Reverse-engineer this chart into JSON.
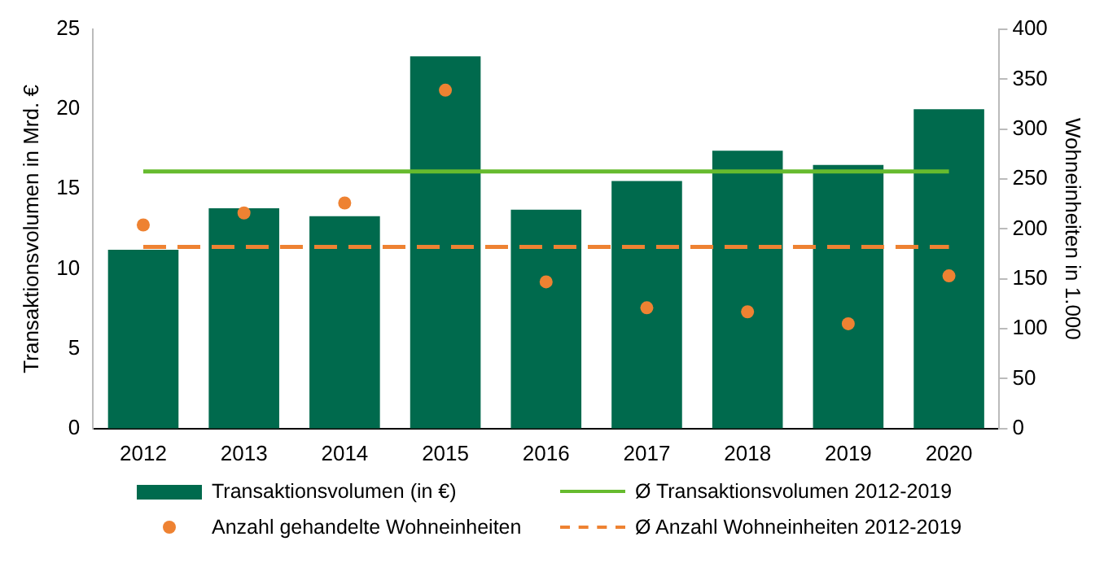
{
  "chart_data": {
    "type": "bar",
    "categories": [
      "2012",
      "2013",
      "2014",
      "2015",
      "2016",
      "2017",
      "2018",
      "2019",
      "2020"
    ],
    "ylabel": "Transaktionsvolumen in Mrd. €",
    "y2label": "Wohneinheiten in 1.000",
    "ylim": [
      0,
      25
    ],
    "yticks": [
      0,
      5,
      10,
      15,
      20,
      25
    ],
    "y2lim": [
      0,
      400
    ],
    "y2ticks": [
      0,
      50,
      100,
      150,
      200,
      250,
      300,
      350,
      400
    ],
    "series": [
      {
        "name": "Transaktionsvolumen (in €)",
        "color": "#006a4d",
        "values": [
          11.2,
          13.8,
          13.3,
          23.3,
          13.7,
          15.5,
          17.4,
          16.5,
          20.0
        ]
      },
      {
        "name": "Anzahl gehandelte Wohneinheiten",
        "type": "scatter",
        "axis": "y2",
        "color": "#ee8232",
        "values": [
          204,
          216,
          226,
          339,
          147,
          121,
          117,
          105,
          153
        ]
      }
    ],
    "ref_lines": [
      {
        "axis": "y",
        "value": 16.1,
        "label": "Ø Transaktionsvolumen 2012-2019",
        "color": "#66bb2e",
        "line_style": "solid"
      },
      {
        "axis": "y2",
        "value": 182,
        "label": "Ø Anzahl Wohneinheiten 2012-2019",
        "color": "#ee8232",
        "line_style": "dashed"
      }
    ],
    "marker": "circle",
    "grid": false,
    "legend": "bottom"
  }
}
